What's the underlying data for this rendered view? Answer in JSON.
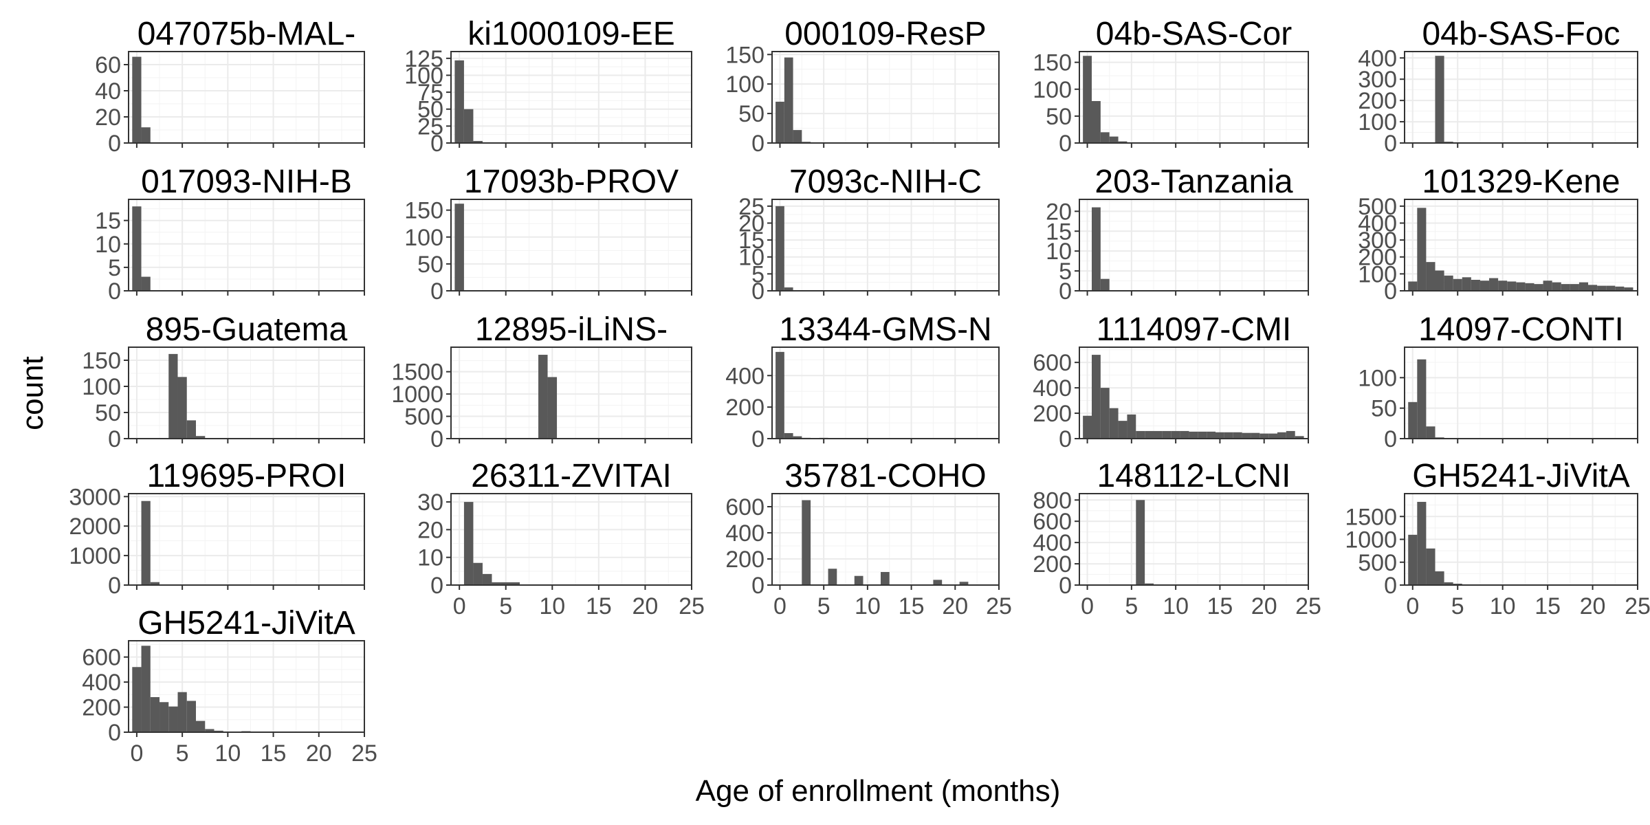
{
  "chart_data": {
    "type": "bar",
    "subtype": "faceted-histogram",
    "xlabel": "Age of enrollment (months)",
    "ylabel": "count",
    "xlim": [
      -0.9,
      25
    ],
    "x_ticks": [
      0,
      5,
      10,
      15,
      20,
      25
    ],
    "bin_width": 1,
    "facet_columns": 5,
    "bar_color": "#595959",
    "panels": [
      {
        "title": "047075b-MAL-",
        "ylim": [
          0,
          70
        ],
        "y_ticks": [
          0,
          20,
          40,
          60
        ],
        "bins": [
          0,
          1
        ],
        "counts": [
          66,
          12
        ]
      },
      {
        "title": "ki1000109-EE",
        "ylim": [
          0,
          135
        ],
        "y_ticks": [
          0,
          25,
          50,
          75,
          100,
          125
        ],
        "bins": [
          0,
          1,
          2
        ],
        "counts": [
          122,
          50,
          3
        ]
      },
      {
        "title": "000109-ResP",
        "ylim": [
          0,
          155
        ],
        "y_ticks": [
          0,
          50,
          100,
          150
        ],
        "bins": [
          0,
          1,
          2,
          3
        ],
        "counts": [
          70,
          145,
          22,
          2
        ]
      },
      {
        "title": "04b-SAS-Cor",
        "ylim": [
          0,
          170
        ],
        "y_ticks": [
          0,
          50,
          100,
          150
        ],
        "bins": [
          0,
          1,
          2,
          3,
          4,
          5
        ],
        "counts": [
          162,
          78,
          20,
          12,
          3,
          1
        ]
      },
      {
        "title": "04b-SAS-Foc",
        "ylim": [
          0,
          430
        ],
        "y_ticks": [
          0,
          100,
          200,
          300,
          400
        ],
        "bins": [
          3,
          4
        ],
        "counts": [
          410,
          6
        ]
      },
      {
        "title": "017093-NIH-B",
        "ylim": [
          0,
          19.5
        ],
        "y_ticks": [
          0,
          5,
          10,
          15
        ],
        "bins": [
          0,
          1
        ],
        "counts": [
          18,
          3
        ]
      },
      {
        "title": "17093b-PROV",
        "ylim": [
          0,
          170
        ],
        "y_ticks": [
          0,
          50,
          100,
          150
        ],
        "bins": [
          0
        ],
        "counts": [
          162
        ]
      },
      {
        "title": "7093c-NIH-C",
        "ylim": [
          0,
          27
        ],
        "y_ticks": [
          0,
          5,
          10,
          15,
          20,
          25
        ],
        "bins": [
          0,
          1
        ],
        "counts": [
          25,
          1
        ]
      },
      {
        "title": "203-Tanzania",
        "ylim": [
          0,
          23
        ],
        "y_ticks": [
          0,
          5,
          10,
          15,
          20
        ],
        "bins": [
          1,
          2
        ],
        "counts": [
          21,
          3
        ]
      },
      {
        "title": "101329-Kene",
        "ylim": [
          0,
          540
        ],
        "y_ticks": [
          0,
          100,
          200,
          300,
          400,
          500
        ],
        "bins": [
          0,
          1,
          2,
          3,
          4,
          5,
          6,
          7,
          8,
          9,
          10,
          11,
          12,
          13,
          14,
          15,
          16,
          17,
          18,
          19,
          20,
          21,
          22,
          23,
          24
        ],
        "counts": [
          55,
          490,
          170,
          120,
          90,
          70,
          80,
          65,
          60,
          75,
          60,
          55,
          50,
          45,
          40,
          60,
          50,
          40,
          40,
          50,
          35,
          30,
          30,
          25,
          20
        ]
      },
      {
        "title": "895-Guatema",
        "ylim": [
          0,
          175
        ],
        "y_ticks": [
          0,
          50,
          100,
          150
        ],
        "bins": [
          4,
          5,
          6,
          7
        ],
        "counts": [
          162,
          118,
          35,
          5
        ]
      },
      {
        "title": "12895-iLiNS-",
        "ylim": [
          0,
          2050
        ],
        "y_ticks": [
          0,
          500,
          1000,
          1500
        ],
        "bins": [
          9,
          10
        ],
        "counts": [
          1880,
          1380
        ]
      },
      {
        "title": "13344-GMS-N",
        "ylim": [
          0,
          580
        ],
        "y_ticks": [
          0,
          200,
          400
        ],
        "bins": [
          0,
          1,
          2,
          3,
          4,
          5,
          6
        ],
        "counts": [
          550,
          35,
          15,
          5,
          3,
          5,
          1
        ]
      },
      {
        "title": "1114097-CMI",
        "ylim": [
          0,
          720
        ],
        "y_ticks": [
          0,
          200,
          400,
          600
        ],
        "bins": [
          0,
          1,
          2,
          3,
          4,
          5,
          6,
          7,
          8,
          9,
          10,
          11,
          12,
          13,
          14,
          15,
          16,
          17,
          18,
          19,
          20,
          21,
          22,
          23,
          24
        ],
        "counts": [
          180,
          660,
          400,
          240,
          140,
          190,
          60,
          60,
          60,
          60,
          60,
          60,
          55,
          55,
          55,
          50,
          50,
          50,
          45,
          45,
          40,
          40,
          50,
          60,
          20
        ]
      },
      {
        "title": "14097-CONTI",
        "ylim": [
          0,
          150
        ],
        "y_ticks": [
          0,
          50,
          100
        ],
        "bins": [
          0,
          1,
          2,
          3
        ],
        "counts": [
          60,
          130,
          20,
          2
        ]
      },
      {
        "title": "119695-PROI",
        "ylim": [
          0,
          3100
        ],
        "y_ticks": [
          0,
          1000,
          2000,
          3000
        ],
        "bins": [
          1,
          2
        ],
        "counts": [
          2850,
          100
        ]
      },
      {
        "title": "26311-ZVITAI",
        "ylim": [
          0,
          33
        ],
        "y_ticks": [
          0,
          10,
          20,
          30
        ],
        "bins": [
          1,
          2,
          3,
          4,
          5,
          6
        ],
        "counts": [
          30,
          8,
          4,
          1,
          1,
          1
        ]
      },
      {
        "title": "35781-COHO",
        "ylim": [
          0,
          700
        ],
        "y_ticks": [
          0,
          200,
          400,
          600
        ],
        "bins": [
          3,
          6,
          9,
          12,
          18,
          21
        ],
        "counts": [
          650,
          125,
          70,
          100,
          40,
          25
        ]
      },
      {
        "title": "148112-LCNI",
        "ylim": [
          0,
          860
        ],
        "y_ticks": [
          0,
          200,
          400,
          600,
          800
        ],
        "bins": [
          6,
          7
        ],
        "counts": [
          800,
          15
        ]
      },
      {
        "title": "GH5241-JiVitA",
        "ylim": [
          0,
          2000
        ],
        "y_ticks": [
          0,
          500,
          1000,
          1500
        ],
        "bins": [
          0,
          1,
          2,
          3,
          4,
          5,
          6,
          7
        ],
        "counts": [
          1100,
          1820,
          800,
          300,
          60,
          30,
          15,
          5
        ]
      },
      {
        "title": "GH5241-JiVitA",
        "ylim": [
          0,
          730
        ],
        "y_ticks": [
          0,
          200,
          400,
          600
        ],
        "bins": [
          0,
          1,
          2,
          3,
          4,
          5,
          6,
          7,
          8,
          9,
          10,
          11,
          12,
          13
        ],
        "counts": [
          520,
          690,
          280,
          240,
          205,
          320,
          250,
          90,
          25,
          12,
          5,
          3,
          8,
          3
        ]
      }
    ]
  }
}
